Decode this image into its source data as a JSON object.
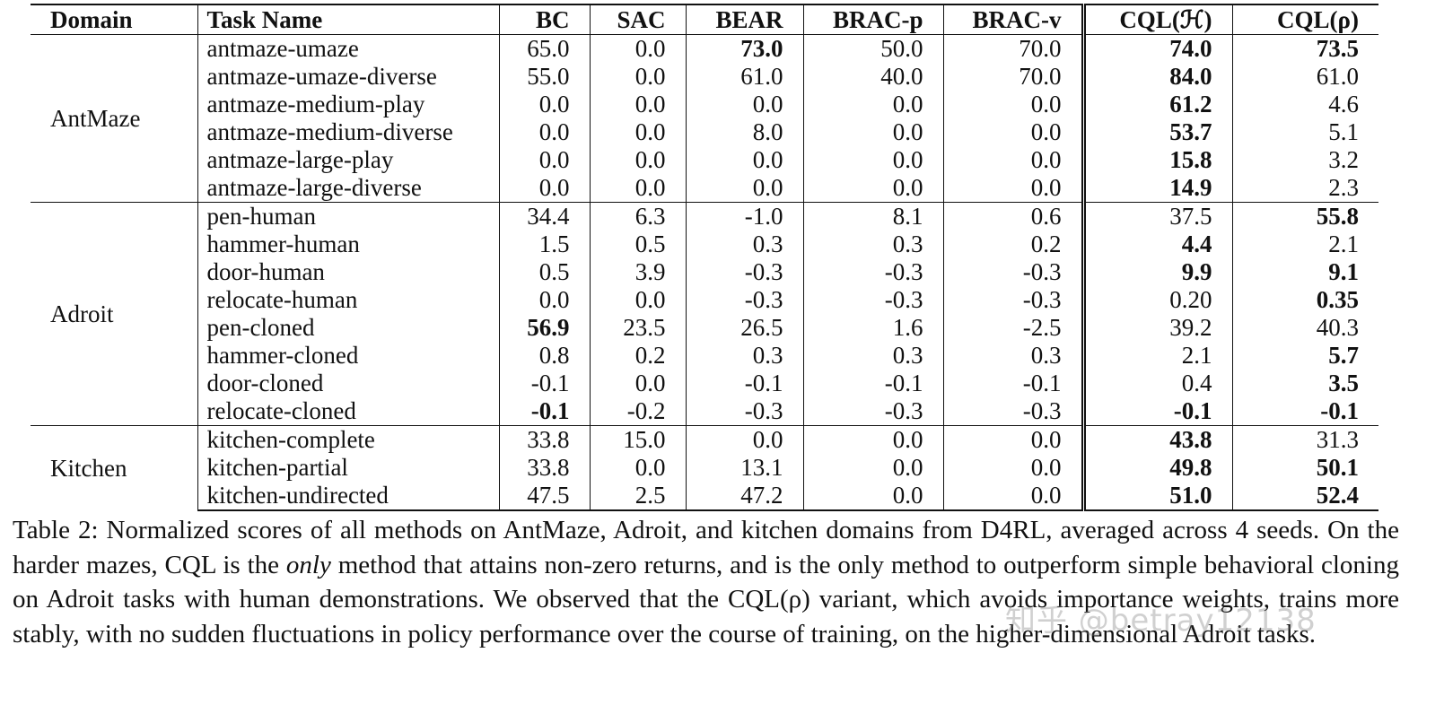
{
  "table": {
    "headers": [
      "Domain",
      "Task Name",
      "BC",
      "SAC",
      "BEAR",
      "BRAC-p",
      "BRAC-v",
      "CQL(ℋ)",
      "CQL(ρ)"
    ],
    "groups": [
      {
        "domain": "AntMaze",
        "rows": [
          {
            "task": "antmaze-umaze",
            "values": [
              "65.0",
              "0.0",
              "73.0",
              "50.0",
              "70.0",
              "74.0",
              "73.5"
            ],
            "bold": [
              2,
              5,
              6
            ]
          },
          {
            "task": "antmaze-umaze-diverse",
            "values": [
              "55.0",
              "0.0",
              "61.0",
              "40.0",
              "70.0",
              "84.0",
              "61.0"
            ],
            "bold": [
              5
            ]
          },
          {
            "task": "antmaze-medium-play",
            "values": [
              "0.0",
              "0.0",
              "0.0",
              "0.0",
              "0.0",
              "61.2",
              "4.6"
            ],
            "bold": [
              5
            ]
          },
          {
            "task": "antmaze-medium-diverse",
            "values": [
              "0.0",
              "0.0",
              "8.0",
              "0.0",
              "0.0",
              "53.7",
              "5.1"
            ],
            "bold": [
              5
            ]
          },
          {
            "task": "antmaze-large-play",
            "values": [
              "0.0",
              "0.0",
              "0.0",
              "0.0",
              "0.0",
              "15.8",
              "3.2"
            ],
            "bold": [
              5
            ]
          },
          {
            "task": "antmaze-large-diverse",
            "values": [
              "0.0",
              "0.0",
              "0.0",
              "0.0",
              "0.0",
              "14.9",
              "2.3"
            ],
            "bold": [
              5
            ]
          }
        ]
      },
      {
        "domain": "Adroit",
        "rows": [
          {
            "task": "pen-human",
            "values": [
              "34.4",
              "6.3",
              "-1.0",
              "8.1",
              "0.6",
              "37.5",
              "55.8"
            ],
            "bold": [
              6
            ]
          },
          {
            "task": "hammer-human",
            "values": [
              "1.5",
              "0.5",
              "0.3",
              "0.3",
              "0.2",
              "4.4",
              "2.1"
            ],
            "bold": [
              5
            ]
          },
          {
            "task": "door-human",
            "values": [
              "0.5",
              "3.9",
              "-0.3",
              "-0.3",
              "-0.3",
              "9.9",
              "9.1"
            ],
            "bold": [
              5,
              6
            ]
          },
          {
            "task": "relocate-human",
            "values": [
              "0.0",
              "0.0",
              "-0.3",
              "-0.3",
              "-0.3",
              "0.20",
              "0.35"
            ],
            "bold": [
              6
            ]
          },
          {
            "task": "pen-cloned",
            "values": [
              "56.9",
              "23.5",
              "26.5",
              "1.6",
              "-2.5",
              "39.2",
              "40.3"
            ],
            "bold": [
              0
            ]
          },
          {
            "task": "hammer-cloned",
            "values": [
              "0.8",
              "0.2",
              "0.3",
              "0.3",
              "0.3",
              "2.1",
              "5.7"
            ],
            "bold": [
              6
            ]
          },
          {
            "task": "door-cloned",
            "values": [
              "-0.1",
              "0.0",
              "-0.1",
              "-0.1",
              "-0.1",
              "0.4",
              "3.5"
            ],
            "bold": [
              6
            ]
          },
          {
            "task": "relocate-cloned",
            "values": [
              "-0.1",
              "-0.2",
              "-0.3",
              "-0.3",
              "-0.3",
              "-0.1",
              "-0.1"
            ],
            "bold": [
              0,
              5,
              6
            ]
          }
        ]
      },
      {
        "domain": "Kitchen",
        "rows": [
          {
            "task": "kitchen-complete",
            "values": [
              "33.8",
              "15.0",
              "0.0",
              "0.0",
              "0.0",
              "43.8",
              "31.3"
            ],
            "bold": [
              5
            ]
          },
          {
            "task": "kitchen-partial",
            "values": [
              "33.8",
              "0.0",
              "13.1",
              "0.0",
              "0.0",
              "49.8",
              "50.1"
            ],
            "bold": [
              5,
              6
            ]
          },
          {
            "task": "kitchen-undirected",
            "values": [
              "47.5",
              "2.5",
              "47.2",
              "0.0",
              "0.0",
              "51.0",
              "52.4"
            ],
            "bold": [
              5,
              6
            ]
          }
        ]
      }
    ]
  },
  "caption": {
    "part1": "Table 2: Normalized scores of all methods on AntMaze, Adroit, and kitchen domains from D4RL, averaged across 4 seeds. On the harder mazes, CQL is the ",
    "emphasis": "only",
    "part2": " method that attains non-zero returns, and is the only method to outperform simple behavioral cloning on Adroit tasks with human demonstrations. We observed that the CQL(ρ) variant, which avoids importance weights, trains more stably, with no sudden fluctuations in policy performance over the course of training, on the higher-dimensional Adroit tasks."
  },
  "watermark": "知乎 @betray12138"
}
